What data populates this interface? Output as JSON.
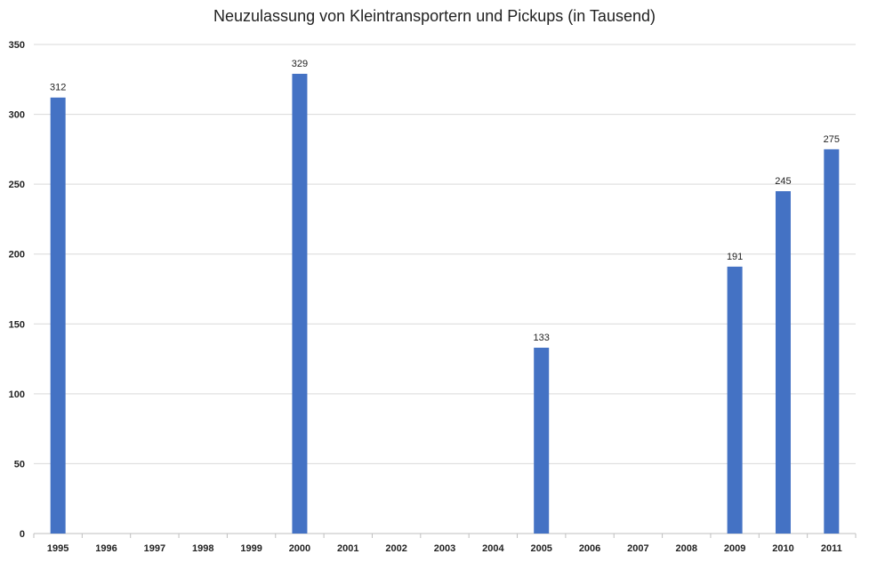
{
  "chart_data": {
    "type": "bar",
    "title": "Neuzulassung von Kleintransportern  und Pickups (in Tausend)",
    "xlabel": "",
    "ylabel": "",
    "categories": [
      "1995",
      "1996",
      "1997",
      "1998",
      "1999",
      "2000",
      "2001",
      "2002",
      "2003",
      "2004",
      "2005",
      "2006",
      "2007",
      "2008",
      "2009",
      "2010",
      "2011"
    ],
    "values": [
      312,
      null,
      null,
      null,
      null,
      329,
      null,
      null,
      null,
      null,
      133,
      null,
      null,
      null,
      191,
      245,
      275
    ],
    "data_labels": [
      "312",
      "",
      "",
      "",
      "",
      "329",
      "",
      "",
      "",
      "",
      "133",
      "",
      "",
      "",
      "191",
      "245",
      "275"
    ],
    "ylim": [
      0,
      350
    ],
    "yticks": [
      0,
      50,
      100,
      150,
      200,
      250,
      300,
      350
    ],
    "grid": true,
    "legend": "none",
    "colors": {
      "bar": "#4472C4",
      "grid": "#D9D9D9",
      "axis": "#BFBFBF"
    }
  }
}
